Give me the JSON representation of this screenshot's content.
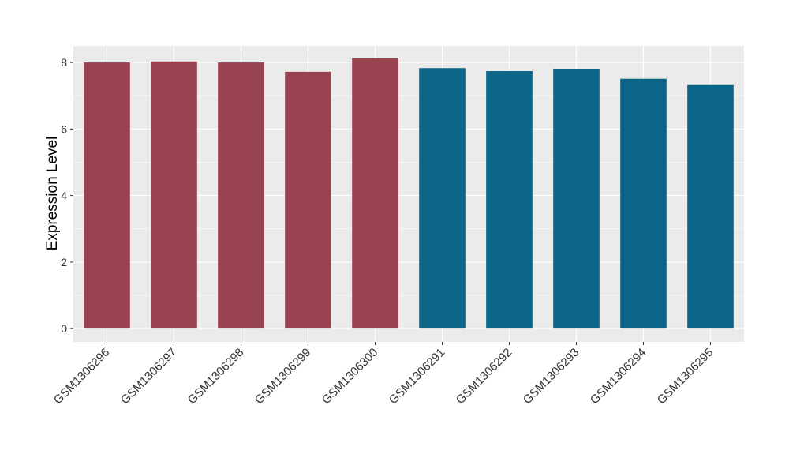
{
  "chart_data": {
    "type": "bar",
    "y_label": "Expression Level",
    "categories": [
      "GSM1306296",
      "GSM1306297",
      "GSM1306298",
      "GSM1306299",
      "GSM1306300",
      "GSM1306291",
      "GSM1306292",
      "GSM1306293",
      "GSM1306294",
      "GSM1306295"
    ],
    "values": [
      8.0,
      8.03,
      8.0,
      7.72,
      8.12,
      7.83,
      7.74,
      7.79,
      7.51,
      7.32
    ],
    "colors": [
      "#9a4350",
      "#9a4350",
      "#9a4350",
      "#9a4350",
      "#9a4350",
      "#0c6688",
      "#0c6688",
      "#0c6688",
      "#0c6688",
      "#0c6688"
    ],
    "ylim": [
      -0.4,
      8.5
    ],
    "yticks": [
      0,
      2,
      4,
      6,
      8
    ],
    "grid": true
  }
}
